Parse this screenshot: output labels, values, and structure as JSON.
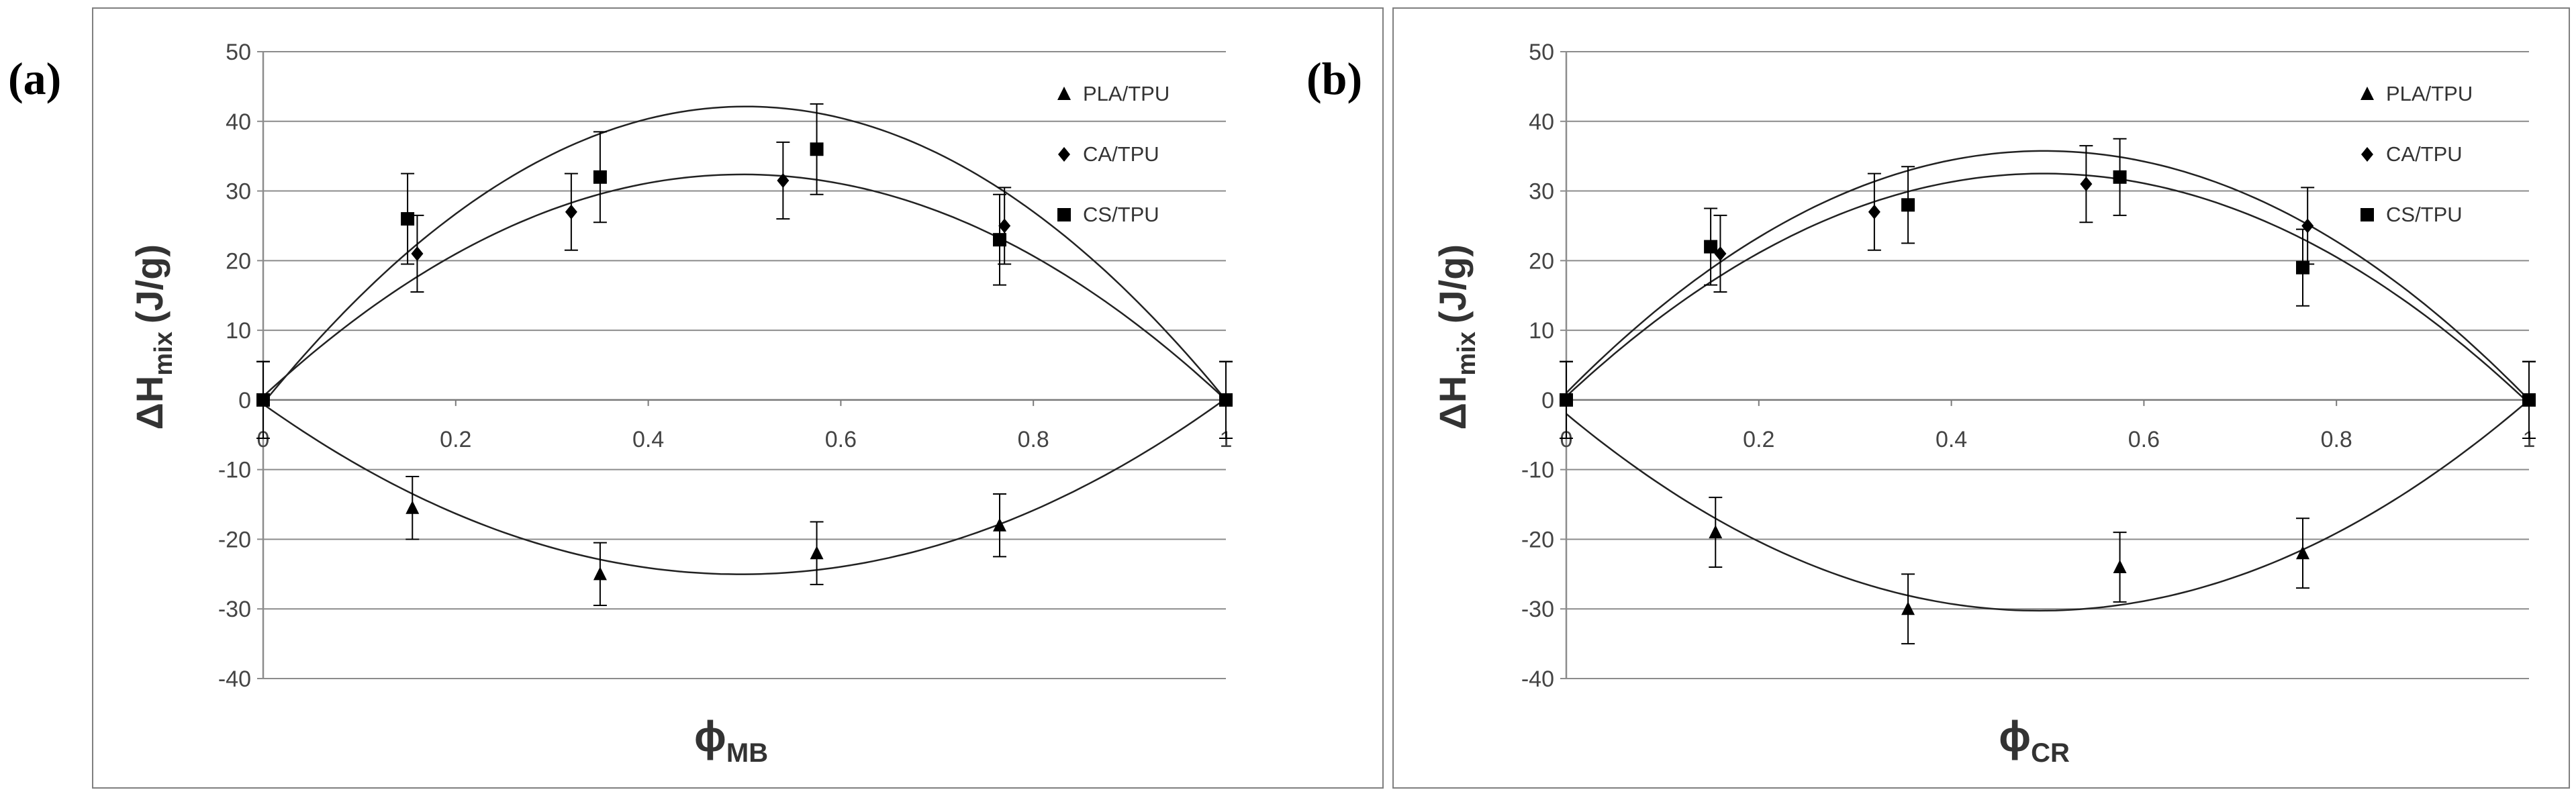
{
  "figure": {
    "panels": [
      {
        "label": "(a)",
        "ylabel": {
          "symbol": "ΔH",
          "sub": "mix",
          "unit": "(J/g)"
        },
        "xlabel": {
          "symbol": "ϕ",
          "sub": "MB"
        }
      },
      {
        "label": "(b)",
        "ylabel": {
          "symbol": "ΔH",
          "sub": "mix",
          "unit": "(J/g)"
        },
        "xlabel": {
          "symbol": "ϕ",
          "sub": "CR"
        }
      }
    ]
  },
  "chart_data": [
    {
      "type": "scatter",
      "panel": "(a)",
      "xlabel": "ϕMB",
      "ylabel": "ΔHmix (J/g)",
      "xlim": [
        0,
        1
      ],
      "ylim": [
        -40,
        50
      ],
      "x_ticks": [
        "0",
        "0.2",
        "0.4",
        "0.6",
        "0.8",
        "1"
      ],
      "y_ticks": [
        "50",
        "40",
        "30",
        "20",
        "10",
        "0",
        "-10",
        "-20",
        "-30",
        "-40"
      ],
      "grid": "horizontal",
      "legend_position": "top-right",
      "series": [
        {
          "name": "PLA/TPU",
          "marker": "triangle",
          "points": [
            {
              "x": 0,
              "y": 0,
              "err": 5.5
            },
            {
              "x": 0.155,
              "y": -15.5,
              "err": 4.5
            },
            {
              "x": 0.35,
              "y": -25,
              "err": 4.5
            },
            {
              "x": 0.575,
              "y": -22,
              "err": 4.5
            },
            {
              "x": 0.765,
              "y": -18,
              "err": 4.5
            },
            {
              "x": 1,
              "y": 0,
              "err": 5.5
            }
          ],
          "fit": [
            -0.6,
            -98.5,
            99.3
          ]
        },
        {
          "name": "CA/TPU",
          "marker": "diamond",
          "points": [
            {
              "x": 0,
              "y": 0,
              "err": 5.5
            },
            {
              "x": 0.16,
              "y": 21,
              "err": 5.5
            },
            {
              "x": 0.32,
              "y": 27,
              "err": 5.5
            },
            {
              "x": 0.54,
              "y": 31.5,
              "err": 5.5
            },
            {
              "x": 0.77,
              "y": 25,
              "err": 5.5
            },
            {
              "x": 1,
              "y": 0,
              "err": 5.5
            }
          ],
          "fit": [
            0.5,
            128,
            -128.5
          ]
        },
        {
          "name": "CS/TPU",
          "marker": "square",
          "points": [
            {
              "x": 0,
              "y": 0,
              "err": 5.5
            },
            {
              "x": 0.15,
              "y": 26,
              "err": 6.5
            },
            {
              "x": 0.35,
              "y": 32,
              "err": 6.5
            },
            {
              "x": 0.575,
              "y": 36,
              "err": 6.5
            },
            {
              "x": 0.765,
              "y": 23,
              "err": 6.5
            },
            {
              "x": 1,
              "y": 0,
              "err": 5.5
            }
          ],
          "fit": [
            -0.5,
            170,
            -169.5
          ]
        }
      ]
    },
    {
      "type": "scatter",
      "panel": "(b)",
      "xlabel": "ϕCR",
      "ylabel": "ΔHmix (J/g)",
      "xlim": [
        0,
        1
      ],
      "ylim": [
        -40,
        50
      ],
      "x_ticks": [
        "0",
        "0.2",
        "0.4",
        "0.6",
        "0.8",
        "1"
      ],
      "y_ticks": [
        "50",
        "40",
        "30",
        "20",
        "10",
        "0",
        "-10",
        "-20",
        "-30",
        "-40"
      ],
      "grid": "horizontal",
      "legend_position": "top-right",
      "series": [
        {
          "name": "PLA/TPU",
          "marker": "triangle",
          "points": [
            {
              "x": 0,
              "y": 0,
              "err": 5.5
            },
            {
              "x": 0.155,
              "y": -19,
              "err": 5
            },
            {
              "x": 0.355,
              "y": -30,
              "err": 5
            },
            {
              "x": 0.575,
              "y": -24,
              "err": 5
            },
            {
              "x": 0.765,
              "y": -22,
              "err": 5
            },
            {
              "x": 1,
              "y": 0,
              "err": 5.5
            }
          ],
          "fit": [
            -2,
            -115,
            117
          ]
        },
        {
          "name": "CA/TPU",
          "marker": "diamond",
          "points": [
            {
              "x": 0,
              "y": 0,
              "err": 5.5
            },
            {
              "x": 0.16,
              "y": 21,
              "err": 5.5
            },
            {
              "x": 0.32,
              "y": 27,
              "err": 5.5
            },
            {
              "x": 0.54,
              "y": 31,
              "err": 5.5
            },
            {
              "x": 0.77,
              "y": 25,
              "err": 5.5
            },
            {
              "x": 1,
              "y": 0,
              "err": 5.5
            }
          ],
          "fit": [
            1,
            140,
            -141
          ]
        },
        {
          "name": "CS/TPU",
          "marker": "square",
          "points": [
            {
              "x": 0,
              "y": 0,
              "err": 5.5
            },
            {
              "x": 0.15,
              "y": 22,
              "err": 5.5
            },
            {
              "x": 0.355,
              "y": 28,
              "err": 5.5
            },
            {
              "x": 0.575,
              "y": 32,
              "err": 5.5
            },
            {
              "x": 0.765,
              "y": 19,
              "err": 5.5
            },
            {
              "x": 1,
              "y": 0,
              "err": 5.5
            }
          ],
          "fit": [
            0.5,
            129,
            -130
          ]
        }
      ]
    }
  ]
}
